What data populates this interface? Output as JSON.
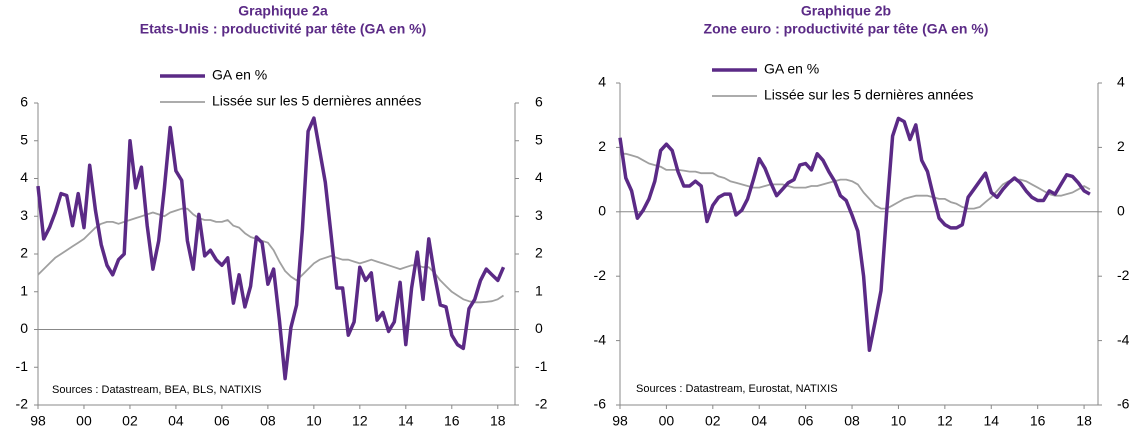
{
  "chart_data": [
    {
      "type": "line",
      "title": "Graphique 2a",
      "subtitle": "Etats-Unis : productivité par tête (GA en %)",
      "annotation": "Sources : Datastream, BEA, BLS, NATIXIS",
      "x": [
        1998,
        1998.25,
        1998.5,
        1998.75,
        1999,
        1999.25,
        1999.5,
        1999.75,
        2000,
        2000.25,
        2000.5,
        2000.75,
        2001,
        2001.25,
        2001.5,
        2001.75,
        2002,
        2002.25,
        2002.5,
        2002.75,
        2003,
        2003.25,
        2003.5,
        2003.75,
        2004,
        2004.25,
        2004.5,
        2004.75,
        2005,
        2005.25,
        2005.5,
        2005.75,
        2006,
        2006.25,
        2006.5,
        2006.75,
        2007,
        2007.25,
        2007.5,
        2007.75,
        2008,
        2008.25,
        2008.5,
        2008.75,
        2009,
        2009.25,
        2009.5,
        2009.75,
        2010,
        2010.25,
        2010.5,
        2010.75,
        2011,
        2011.25,
        2011.5,
        2011.75,
        2012,
        2012.25,
        2012.5,
        2012.75,
        2013,
        2013.25,
        2013.5,
        2013.75,
        2014,
        2014.25,
        2014.5,
        2014.75,
        2015,
        2015.25,
        2015.5,
        2015.75,
        2016,
        2016.25,
        2016.5,
        2016.75,
        2017,
        2017.25,
        2017.5,
        2017.75,
        2018,
        2018.25
      ],
      "series": [
        {
          "name": "GA en %",
          "color": "#5b2a86",
          "values": [
            3.8,
            2.4,
            2.7,
            3.1,
            3.6,
            3.55,
            2.75,
            3.6,
            2.7,
            4.35,
            3.15,
            2.25,
            1.7,
            1.45,
            1.85,
            2.0,
            5.0,
            3.75,
            4.3,
            2.75,
            1.6,
            2.35,
            3.75,
            5.35,
            4.2,
            3.95,
            2.35,
            1.6,
            3.05,
            1.95,
            2.1,
            1.85,
            1.7,
            1.9,
            0.7,
            1.45,
            0.6,
            1.15,
            2.45,
            2.3,
            1.2,
            1.6,
            0.25,
            -1.3,
            0.05,
            0.65,
            2.65,
            5.25,
            5.6,
            4.75,
            3.9,
            2.5,
            1.1,
            1.1,
            -0.15,
            0.2,
            1.65,
            1.3,
            1.5,
            0.25,
            0.45,
            -0.05,
            0.2,
            1.25,
            -0.4,
            1.1,
            2.05,
            0.8,
            2.4,
            1.45,
            0.65,
            0.6,
            -0.15,
            -0.4,
            -0.5,
            0.55,
            0.8,
            1.3,
            1.6,
            1.45,
            1.3,
            1.65
          ]
        },
        {
          "name": "Lissée sur les 5 dernières années",
          "color": "#a0a0a0",
          "values": [
            1.45,
            1.6,
            1.75,
            1.9,
            2.0,
            2.1,
            2.2,
            2.3,
            2.4,
            2.55,
            2.7,
            2.8,
            2.85,
            2.85,
            2.8,
            2.85,
            2.9,
            2.95,
            3.0,
            3.05,
            3.1,
            3.05,
            3.0,
            3.1,
            3.15,
            3.2,
            3.2,
            3.05,
            2.95,
            2.9,
            2.9,
            2.85,
            2.85,
            2.9,
            2.75,
            2.7,
            2.55,
            2.45,
            2.4,
            2.35,
            2.3,
            2.1,
            1.8,
            1.55,
            1.4,
            1.3,
            1.45,
            1.6,
            1.75,
            1.85,
            1.9,
            1.95,
            1.9,
            1.85,
            1.85,
            1.8,
            1.75,
            1.8,
            1.85,
            1.8,
            1.75,
            1.7,
            1.65,
            1.6,
            1.65,
            1.7,
            1.7,
            1.65,
            1.65,
            1.5,
            1.3,
            1.15,
            1.0,
            0.9,
            0.8,
            0.75,
            0.72,
            0.72,
            0.73,
            0.75,
            0.8,
            0.9
          ]
        }
      ],
      "xlim": [
        1998,
        2018.75
      ],
      "xticks": [
        {
          "value": 1998,
          "label": "98"
        },
        {
          "value": 2000,
          "label": "00"
        },
        {
          "value": 2002,
          "label": "02"
        },
        {
          "value": 2004,
          "label": "04"
        },
        {
          "value": 2006,
          "label": "06"
        },
        {
          "value": 2008,
          "label": "08"
        },
        {
          "value": 2010,
          "label": "10"
        },
        {
          "value": 2012,
          "label": "12"
        },
        {
          "value": 2014,
          "label": "14"
        },
        {
          "value": 2016,
          "label": "16"
        },
        {
          "value": 2018,
          "label": "18"
        }
      ],
      "ylim": [
        -2,
        6
      ],
      "yticks": [
        -2,
        -1,
        0,
        1,
        2,
        3,
        4,
        5,
        6
      ]
    },
    {
      "type": "line",
      "title": "Graphique 2b",
      "subtitle": "Zone euro : productivité par tête (GA en %)",
      "annotation": "Sources : Datastream, Eurostat, NATIXIS",
      "x": [
        1998,
        1998.25,
        1998.5,
        1998.75,
        1999,
        1999.25,
        1999.5,
        1999.75,
        2000,
        2000.25,
        2000.5,
        2000.75,
        2001,
        2001.25,
        2001.5,
        2001.75,
        2002,
        2002.25,
        2002.5,
        2002.75,
        2003,
        2003.25,
        2003.5,
        2003.75,
        2004,
        2004.25,
        2004.5,
        2004.75,
        2005,
        2005.25,
        2005.5,
        2005.75,
        2006,
        2006.25,
        2006.5,
        2006.75,
        2007,
        2007.25,
        2007.5,
        2007.75,
        2008,
        2008.25,
        2008.5,
        2008.75,
        2009,
        2009.25,
        2009.5,
        2009.75,
        2010,
        2010.25,
        2010.5,
        2010.75,
        2011,
        2011.25,
        2011.5,
        2011.75,
        2012,
        2012.25,
        2012.5,
        2012.75,
        2013,
        2013.25,
        2013.5,
        2013.75,
        2014,
        2014.25,
        2014.5,
        2014.75,
        2015,
        2015.25,
        2015.5,
        2015.75,
        2016,
        2016.25,
        2016.5,
        2016.75,
        2017,
        2017.25,
        2017.5,
        2017.75,
        2018,
        2018.25
      ],
      "series": [
        {
          "name": "GA en %",
          "color": "#5b2a86",
          "values": [
            2.3,
            1.05,
            0.65,
            -0.2,
            0.05,
            0.4,
            0.95,
            1.9,
            2.1,
            1.9,
            1.25,
            0.8,
            0.8,
            0.95,
            0.8,
            -0.3,
            0.2,
            0.45,
            0.55,
            0.55,
            -0.1,
            0.05,
            0.4,
            1.0,
            1.65,
            1.35,
            0.9,
            0.5,
            0.7,
            0.9,
            1.0,
            1.45,
            1.5,
            1.3,
            1.8,
            1.6,
            1.25,
            0.95,
            0.5,
            0.35,
            -0.1,
            -0.6,
            -2.0,
            -4.3,
            -3.4,
            -2.45,
            0.05,
            2.35,
            2.9,
            2.8,
            2.25,
            2.7,
            1.6,
            1.25,
            0.5,
            -0.2,
            -0.4,
            -0.5,
            -0.5,
            -0.4,
            0.45,
            0.7,
            0.95,
            1.2,
            0.6,
            0.45,
            0.7,
            0.9,
            1.05,
            0.9,
            0.65,
            0.45,
            0.35,
            0.35,
            0.65,
            0.55,
            0.85,
            1.15,
            1.1,
            0.9,
            0.65,
            0.55
          ]
        },
        {
          "name": "Lissée sur les 5 dernières années",
          "color": "#a0a0a0",
          "values": [
            1.8,
            1.8,
            1.75,
            1.7,
            1.6,
            1.5,
            1.45,
            1.4,
            1.3,
            1.3,
            1.3,
            1.28,
            1.25,
            1.25,
            1.2,
            1.2,
            1.2,
            1.1,
            1.05,
            0.95,
            0.9,
            0.85,
            0.8,
            0.75,
            0.75,
            0.8,
            0.85,
            0.85,
            0.85,
            0.8,
            0.75,
            0.75,
            0.75,
            0.8,
            0.8,
            0.85,
            0.9,
            0.95,
            1.0,
            1.0,
            0.95,
            0.85,
            0.6,
            0.4,
            0.2,
            0.1,
            0.1,
            0.2,
            0.3,
            0.4,
            0.45,
            0.5,
            0.5,
            0.5,
            0.45,
            0.4,
            0.4,
            0.3,
            0.25,
            0.15,
            0.1,
            0.1,
            0.15,
            0.3,
            0.45,
            0.65,
            0.85,
            0.95,
            1.0,
            1.0,
            0.95,
            0.85,
            0.75,
            0.65,
            0.55,
            0.5,
            0.5,
            0.55,
            0.6,
            0.7,
            0.8,
            0.7
          ]
        }
      ],
      "xlim": [
        1998,
        2018.6
      ],
      "xticks": [
        {
          "value": 1998,
          "label": "98"
        },
        {
          "value": 2000,
          "label": "00"
        },
        {
          "value": 2002,
          "label": "02"
        },
        {
          "value": 2004,
          "label": "04"
        },
        {
          "value": 2006,
          "label": "06"
        },
        {
          "value": 2008,
          "label": "08"
        },
        {
          "value": 2010,
          "label": "10"
        },
        {
          "value": 2012,
          "label": "12"
        },
        {
          "value": 2014,
          "label": "14"
        },
        {
          "value": 2016,
          "label": "16"
        },
        {
          "value": 2018,
          "label": "18"
        }
      ],
      "ylim": [
        -6,
        4
      ],
      "yticks": [
        -6,
        -4,
        -2,
        0,
        2,
        4
      ]
    }
  ]
}
